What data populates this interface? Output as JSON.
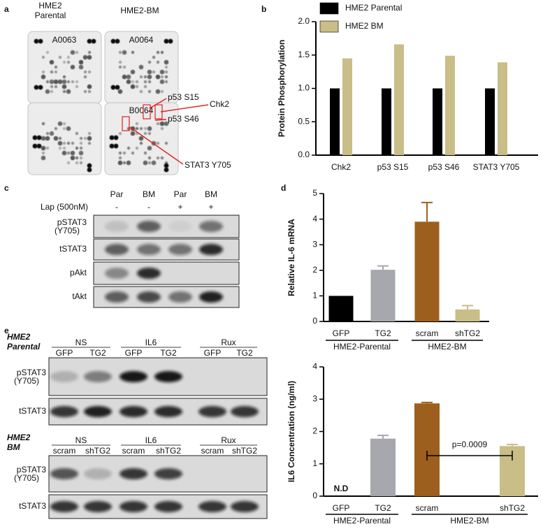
{
  "panel_labels": [
    "a",
    "b",
    "c",
    "d",
    "e"
  ],
  "array": {
    "headers": [
      [
        "HME2",
        "Parental"
      ],
      [
        "HME2-BM"
      ]
    ],
    "membrane_ids": [
      "A0063",
      "A0064",
      "B0064"
    ],
    "callouts": [
      "p53 S15",
      "Chk2",
      "p53 S46",
      "STAT3 Y705"
    ]
  },
  "chart_data": [
    {
      "type": "bar",
      "ylabel": "Protein Phosphorylation",
      "categories": [
        "Chk2",
        "p53 S15",
        "p53 S46",
        "STAT3 Y705"
      ],
      "series": [
        {
          "name": "HME2 Parental",
          "color": "#000000",
          "values": [
            1,
            1,
            1,
            1
          ]
        },
        {
          "name": "HME2 BM",
          "color": "#c9bd88",
          "values": [
            1.45,
            1.66,
            1.49,
            1.39
          ]
        }
      ],
      "ylim": [
        0,
        2
      ],
      "yticks": [
        {
          "value": 0,
          "label": "0.0"
        },
        {
          "value": 0.5,
          "label": "0.5"
        },
        {
          "value": 1,
          "label": "1.0"
        },
        {
          "value": 1.5,
          "label": "1.5"
        },
        {
          "value": 2,
          "label": "2.0"
        }
      ]
    },
    {
      "type": "bar",
      "ylabel": "Relative IL-6 mRNA",
      "categories": [
        "GFP",
        "TG2",
        "scram",
        "shTG2"
      ],
      "group_labels": [
        "HME2-Parental",
        "HME2-BM"
      ],
      "values": [
        1,
        2.02,
        3.9,
        0.47
      ],
      "errors": [
        0,
        0.15,
        0.75,
        0.15
      ],
      "colors": [
        "#000000",
        "#a7a7ae",
        "#9c5f1d",
        "#c9bd88"
      ],
      "ylim": [
        0,
        5
      ],
      "yticks": [
        0,
        1,
        2,
        3,
        4,
        5
      ]
    },
    {
      "type": "bar",
      "ylabel": "IL6 Concentration (ng/ml)",
      "categories": [
        "GFP",
        "TG2",
        "scram",
        "shTG2"
      ],
      "group_labels": [
        "HME2-Parental",
        "HME2-BM"
      ],
      "values": [
        null,
        1.78,
        2.87,
        1.55
      ],
      "value_labels": [
        "N.D",
        null,
        null,
        null
      ],
      "errors": [
        null,
        0.1,
        0.03,
        0.05
      ],
      "colors": [
        "#000000",
        "#a7a7ae",
        "#9c5f1d",
        "#c9bd88"
      ],
      "annotation": "p=0.0009",
      "ylim": [
        0,
        4
      ],
      "yticks": [
        0,
        1,
        2,
        3,
        4
      ]
    }
  ],
  "blot_c": {
    "lanes": [
      "Par",
      "BM",
      "Par",
      "BM"
    ],
    "treatment": "Lap (500nM)",
    "treatment_signs": [
      "-",
      "-",
      "+",
      "+"
    ],
    "rows": [
      [
        "pSTAT3",
        "(Y705)"
      ],
      [
        "tSTAT3"
      ],
      [
        "pAkt"
      ],
      [
        "tAkt"
      ]
    ]
  },
  "blot_e": [
    {
      "cell": [
        "HME2",
        "Parental"
      ],
      "groups": [
        "NS",
        "IL6",
        "Rux"
      ],
      "lanes": [
        "GFP",
        "TG2",
        "GFP",
        "TG2",
        "GFP",
        "TG2"
      ],
      "rows": [
        [
          "pSTAT3",
          "(Y705)"
        ],
        [
          "tSTAT3"
        ]
      ]
    },
    {
      "cell": [
        "HME2",
        "BM"
      ],
      "groups": [
        "NS",
        "IL6",
        "Rux"
      ],
      "lanes": [
        "scram",
        "shTG2",
        "scram",
        "shTG2",
        "scram",
        "shTG2"
      ],
      "rows": [
        [
          "pSTAT3",
          "(Y705)"
        ],
        [
          "tSTAT3"
        ]
      ]
    }
  ]
}
